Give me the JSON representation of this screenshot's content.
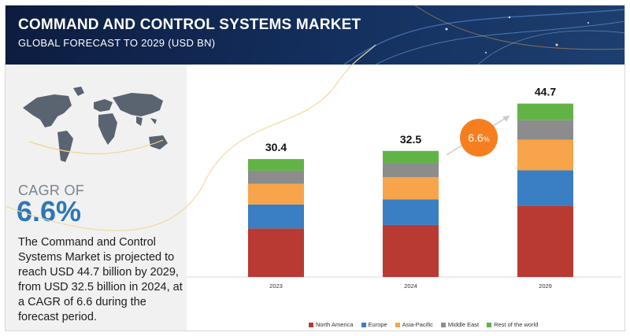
{
  "header": {
    "title": "COMMAND AND CONTROL SYSTEMS MARKET",
    "subtitle": "GLOBAL FORECAST TO 2029 (USD BN)"
  },
  "left_panel": {
    "cagr_label": "CAGR OF",
    "cagr_value": "6.6%",
    "description": "The Command and Control Systems Market is projected to reach USD 44.7 billion by 2029, from USD 32.5 billion in 2024, at a CAGR of 6.6 during the forecast period."
  },
  "chart_data": {
    "type": "bar",
    "stacked": true,
    "categories": [
      "2023",
      "2024",
      "2029"
    ],
    "totals": [
      "30.4",
      "32.5",
      "44.7"
    ],
    "series": [
      {
        "name": "North America",
        "color": "#b83a32",
        "values": [
          12.5,
          13.4,
          18.4
        ]
      },
      {
        "name": "Europe",
        "color": "#3a7ec3",
        "values": [
          6.2,
          6.6,
          9.1
        ]
      },
      {
        "name": "Asia-Pacific",
        "color": "#f7a44a",
        "values": [
          5.3,
          5.7,
          7.9
        ]
      },
      {
        "name": "Middle East",
        "color": "#8c8c8c",
        "values": [
          3.4,
          3.7,
          5.0
        ]
      },
      {
        "name": "Rest of the world",
        "color": "#62b346",
        "values": [
          3.0,
          3.1,
          4.3
        ]
      }
    ],
    "annotation": {
      "text": "6.6",
      "suffix": "%",
      "color": "#f57f1f"
    },
    "ylim": [
      0,
      50
    ],
    "grid": false,
    "legend": "bottom"
  }
}
